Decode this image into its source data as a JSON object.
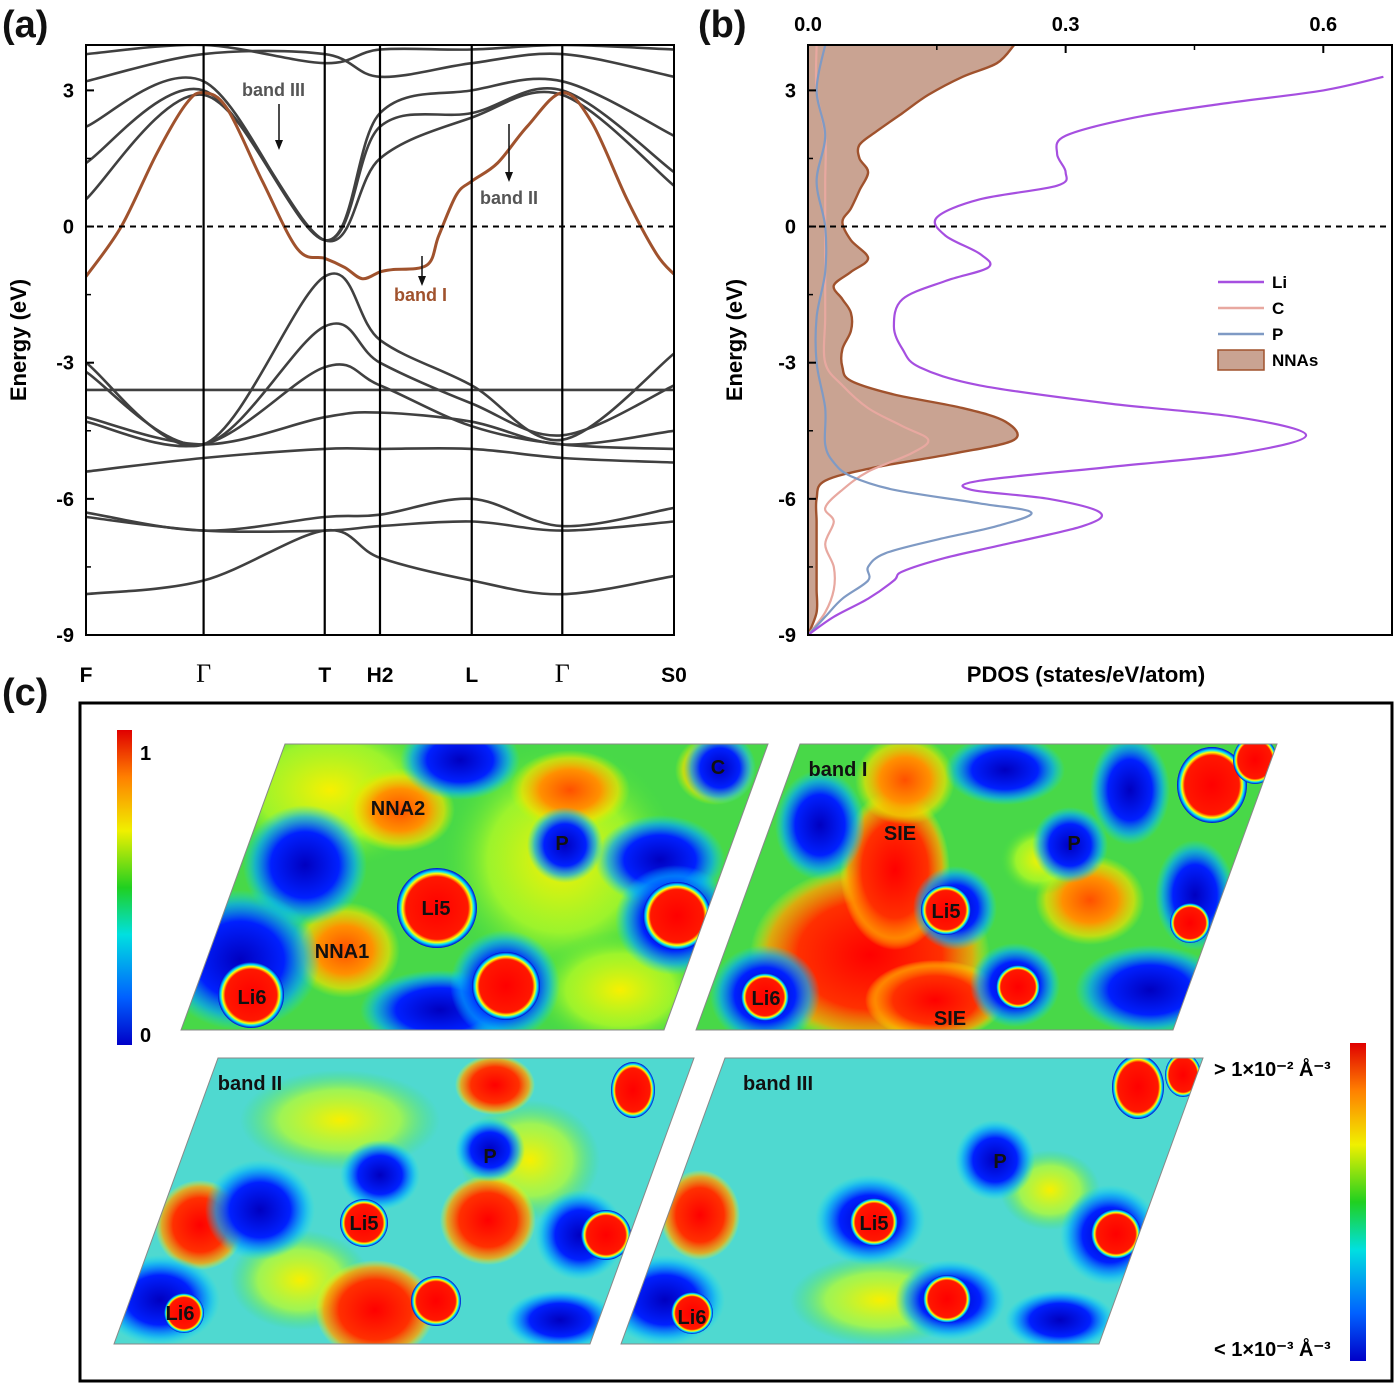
{
  "panel_labels": {
    "a": "(a)",
    "b": "(b)",
    "c": "(c)"
  },
  "chart_data": [
    {
      "panel": "(a)",
      "type": "line",
      "description_kind": "band structure",
      "ylabel": "Energy (eV)",
      "ylim": [
        -9,
        4
      ],
      "yticks": [
        -9,
        -6,
        -3,
        0,
        3
      ],
      "ytick_labels": [
        "-9",
        "-6",
        "-3",
        "0",
        "3"
      ],
      "kpath": [
        "F",
        "Γ",
        "T",
        "H2",
        "L",
        "Γ",
        "S0"
      ],
      "kpath_positions": [
        0,
        1,
        2.03,
        2.5,
        3.28,
        4.05,
        5.0
      ],
      "fermi_level": 0,
      "highlight_color": "#a0522d",
      "band_color": "#404040",
      "highlighted_band": {
        "x": [
          0,
          0.3,
          0.6,
          0.85,
          1.0,
          1.2,
          1.5,
          1.8,
          2.03,
          2.2,
          2.35,
          2.5,
          2.6,
          2.9,
          3.0,
          3.15,
          3.28,
          3.5,
          3.75,
          4.05,
          4.3,
          4.6,
          4.85,
          5.0
        ],
        "y": [
          -1.1,
          0.0,
          1.6,
          2.7,
          2.95,
          2.6,
          1.0,
          -0.5,
          -0.7,
          -0.9,
          -1.15,
          -1.0,
          -0.95,
          -0.85,
          -0.2,
          0.7,
          1.0,
          1.4,
          2.2,
          2.95,
          2.3,
          0.6,
          -0.6,
          -1.05
        ]
      },
      "bands": [
        {
          "x": [
            0,
            1,
            2.03,
            2.5,
            3.28,
            4.05,
            5.0
          ],
          "y": [
            -8.1,
            -7.8,
            -6.7,
            -7.3,
            -7.8,
            -8.1,
            -7.7
          ]
        },
        {
          "x": [
            0,
            1,
            2.03,
            2.5,
            3.28,
            4.05,
            5.0
          ],
          "y": [
            -6.3,
            -6.7,
            -6.4,
            -6.35,
            -6.0,
            -6.6,
            -6.2
          ]
        },
        {
          "x": [
            0,
            1,
            2.03,
            2.5,
            3.28,
            4.05,
            5.0
          ],
          "y": [
            -6.4,
            -6.7,
            -6.7,
            -6.6,
            -6.5,
            -6.7,
            -6.5
          ]
        },
        {
          "x": [
            0,
            1,
            2.03,
            2.5,
            3.28,
            4.05,
            5.0
          ],
          "y": [
            -5.4,
            -5.1,
            -4.9,
            -4.9,
            -4.9,
            -5.1,
            -5.2
          ]
        },
        {
          "x": [
            0,
            1,
            2.03,
            2.5,
            3.28,
            4.05,
            5.0
          ],
          "y": [
            -4.2,
            -4.8,
            -4.2,
            -4.1,
            -4.3,
            -4.8,
            -4.5
          ]
        },
        {
          "x": [
            0,
            1,
            2.03,
            2.5,
            3.28,
            4.05,
            5.0
          ],
          "y": [
            -4.3,
            -4.8,
            -3.1,
            -3.5,
            -4.4,
            -4.8,
            -4.9
          ]
        },
        {
          "x": [
            0,
            1,
            2.03,
            2.5,
            3.28,
            4.05,
            5.0
          ],
          "y": [
            -3.6,
            -3.6,
            -3.6,
            -3.6,
            -3.6,
            -3.6,
            -3.6
          ]
        },
        {
          "x": [
            0,
            1,
            2.03,
            2.5,
            3.28,
            4.05,
            5.0
          ],
          "y": [
            -3.2,
            -4.8,
            -2.2,
            -3.0,
            -3.9,
            -4.6,
            -3.5
          ]
        },
        {
          "x": [
            0,
            1,
            2.03,
            2.5,
            3.28,
            4.05,
            5.0
          ],
          "y": [
            -3.0,
            -4.8,
            -1.1,
            -2.5,
            -3.5,
            -4.7,
            -2.8
          ]
        },
        {
          "x": [
            0,
            1,
            2.03,
            2.5,
            3.28,
            4.05,
            5.0
          ],
          "y": [
            0.6,
            2.9,
            -0.3,
            1.5,
            2.4,
            2.9,
            0.9
          ]
        },
        {
          "x": [
            0,
            1,
            2.03,
            2.5,
            3.28,
            4.05,
            5.0
          ],
          "y": [
            1.4,
            3.0,
            -0.3,
            2.2,
            2.5,
            3.0,
            1.2
          ]
        },
        {
          "x": [
            0,
            1,
            2.03,
            2.5,
            3.28,
            4.05,
            5.0
          ],
          "y": [
            2.2,
            3.2,
            -0.3,
            2.5,
            3.0,
            3.2,
            2.0
          ]
        },
        {
          "x": [
            0,
            1,
            2.03,
            2.5,
            3.28,
            4.05,
            5.0
          ],
          "y": [
            3.2,
            3.8,
            3.8,
            3.3,
            3.6,
            3.8,
            3.3
          ]
        },
        {
          "x": [
            0,
            1,
            2.03,
            2.5,
            3.28,
            4.05,
            5.0
          ],
          "y": [
            3.8,
            4.0,
            3.6,
            3.9,
            3.9,
            4.0,
            3.9
          ]
        }
      ],
      "annotations": [
        {
          "text": "band III",
          "color": "#555555"
        },
        {
          "text": "band II",
          "color": "#555555"
        },
        {
          "text": "band I",
          "color": "#a0522d"
        }
      ]
    },
    {
      "panel": "(b)",
      "type": "line",
      "description_kind": "projected density of states",
      "xlabel": "PDOS (states/eV/atom)",
      "ylabel": "Energy (eV)",
      "xlim": [
        0,
        0.68
      ],
      "ylim": [
        -9,
        4
      ],
      "xticks": [
        0.0,
        0.3,
        0.6
      ],
      "xtick_labels": [
        "0.0",
        "0.3",
        "0.6"
      ],
      "yticks": [
        -9,
        -6,
        -3,
        0,
        3
      ],
      "ytick_labels": [
        "-9",
        "-6",
        "-3",
        "0",
        "3"
      ],
      "legend_position": "right",
      "series": [
        {
          "name": "Li",
          "color": "#a64fe0",
          "energy": [
            -9.0,
            -8.6,
            -8.2,
            -7.8,
            -7.6,
            -7.3,
            -7.0,
            -6.6,
            -6.3,
            -6.0,
            -5.8,
            -5.6,
            -5.3,
            -5.0,
            -4.6,
            -4.2,
            -3.9,
            -3.5,
            -3.1,
            -2.7,
            -2.2,
            -1.6,
            -1.2,
            -0.9,
            -0.6,
            -0.2,
            0.2,
            0.6,
            0.9,
            1.2,
            1.6,
            2.0,
            2.4,
            2.7,
            3.0,
            3.3
          ],
          "values": [
            0.0,
            0.03,
            0.07,
            0.1,
            0.11,
            0.16,
            0.23,
            0.32,
            0.34,
            0.28,
            0.19,
            0.2,
            0.35,
            0.5,
            0.58,
            0.5,
            0.35,
            0.2,
            0.13,
            0.11,
            0.1,
            0.11,
            0.16,
            0.21,
            0.2,
            0.16,
            0.15,
            0.2,
            0.29,
            0.3,
            0.29,
            0.3,
            0.38,
            0.48,
            0.6,
            0.67
          ]
        },
        {
          "name": "C",
          "color": "#e8a8a0",
          "energy": [
            -9.0,
            -8.5,
            -8.0,
            -7.5,
            -7.0,
            -6.5,
            -6.2,
            -5.8,
            -5.4,
            -5.0,
            -4.7,
            -4.4,
            -4.0,
            -3.5,
            -3.0,
            -2.0,
            -1.0,
            0.0,
            1.0,
            2.0,
            3.0,
            4.0
          ],
          "values": [
            0.0,
            0.02,
            0.03,
            0.03,
            0.02,
            0.03,
            0.02,
            0.04,
            0.07,
            0.12,
            0.14,
            0.11,
            0.07,
            0.04,
            0.02,
            0.02,
            0.02,
            0.02,
            0.02,
            0.02,
            0.01,
            0.01
          ]
        },
        {
          "name": "P",
          "color": "#7f9ac4",
          "energy": [
            -9.0,
            -8.6,
            -8.2,
            -7.8,
            -7.5,
            -7.2,
            -6.9,
            -6.6,
            -6.3,
            -6.1,
            -5.8,
            -5.5,
            -5.2,
            -4.8,
            -4.0,
            -3.0,
            -2.0,
            -1.0,
            0.0,
            1.0,
            2.0,
            3.0,
            4.0
          ],
          "values": [
            0.0,
            0.02,
            0.04,
            0.07,
            0.07,
            0.09,
            0.15,
            0.22,
            0.26,
            0.2,
            0.1,
            0.05,
            0.03,
            0.02,
            0.02,
            0.01,
            0.01,
            0.02,
            0.02,
            0.01,
            0.02,
            0.01,
            0.02
          ]
        },
        {
          "name": "NNAs",
          "color": "#a0522d",
          "fill": "#c9a392",
          "energy": [
            -9.0,
            -8.5,
            -8.0,
            -7.5,
            -7.0,
            -6.5,
            -6.0,
            -5.6,
            -5.3,
            -5.0,
            -4.7,
            -4.3,
            -4.0,
            -3.7,
            -3.4,
            -3.1,
            -2.7,
            -2.3,
            -1.9,
            -1.6,
            -1.3,
            -1.0,
            -0.7,
            -0.3,
            0.1,
            0.4,
            0.8,
            1.2,
            1.5,
            1.8,
            2.1,
            2.5,
            2.9,
            3.3,
            3.6,
            4.0
          ],
          "values": [
            0.0,
            0.01,
            0.01,
            0.01,
            0.01,
            0.01,
            0.01,
            0.02,
            0.08,
            0.17,
            0.24,
            0.23,
            0.18,
            0.1,
            0.05,
            0.04,
            0.04,
            0.05,
            0.05,
            0.04,
            0.03,
            0.05,
            0.07,
            0.05,
            0.04,
            0.05,
            0.06,
            0.07,
            0.06,
            0.06,
            0.08,
            0.11,
            0.14,
            0.18,
            0.22,
            0.24
          ]
        }
      ]
    }
  ],
  "panel_c": {
    "maps": [
      {
        "title": "",
        "labels": [
          "NNA2",
          "C",
          "P",
          "Li5",
          "NNA1",
          "Li6"
        ]
      },
      {
        "title": "band I",
        "labels": [
          "SIE",
          "P",
          "Li5",
          "Li6",
          "SIE"
        ]
      },
      {
        "title": "band II",
        "labels": [
          "P",
          "Li5",
          "Li6"
        ]
      },
      {
        "title": "band III",
        "labels": [
          "P",
          "Li5",
          "Li6"
        ]
      }
    ],
    "colorbar_left": {
      "max": "1",
      "min": "0"
    },
    "colorbar_right": {
      "max": "> 1×10⁻² Å⁻³",
      "min": "< 1×10⁻³ Å⁻³"
    }
  }
}
